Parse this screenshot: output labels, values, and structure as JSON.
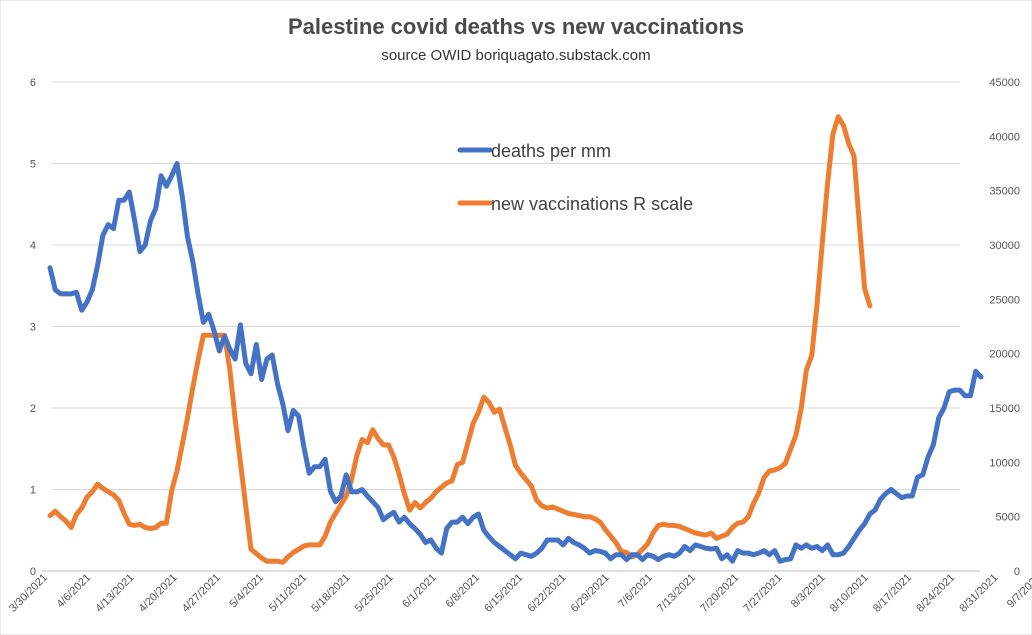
{
  "chart_data": {
    "type": "line",
    "title": "Palestine covid deaths vs new vaccinations",
    "subtitle": "source OWID boriquagato.substack.com",
    "y_left": {
      "min": 0,
      "max": 6,
      "ticks": [
        "0",
        "1",
        "2",
        "3",
        "4",
        "5",
        "6"
      ]
    },
    "y_right": {
      "min": 0,
      "max": 45000,
      "ticks": [
        "0",
        "5000",
        "10000",
        "15000",
        "20000",
        "25000",
        "30000",
        "35000",
        "40000",
        "45000"
      ]
    },
    "x_tick_labels": [
      "3/30/2021",
      "4/6/2021",
      "4/13/2021",
      "4/20/2021",
      "4/27/2021",
      "5/4/2021",
      "5/11/2021",
      "5/18/2021",
      "5/25/2021",
      "6/1/2021",
      "6/8/2021",
      "6/15/2021",
      "6/22/2021",
      "6/29/2021",
      "7/6/2021",
      "7/13/2021",
      "7/20/2021",
      "7/27/2021",
      "8/3/2021",
      "8/10/2021",
      "8/17/2021",
      "8/24/2021",
      "8/31/2021",
      "9/7/2021"
    ],
    "grid": true,
    "legend_position": "top-center",
    "series": [
      {
        "name": "deaths per mm",
        "axis": "left",
        "color": "#4472C4",
        "values": [
          3.72,
          3.45,
          3.4,
          3.4,
          3.4,
          3.42,
          3.2,
          3.3,
          3.45,
          3.75,
          4.12,
          4.25,
          4.2,
          4.55,
          4.55,
          4.65,
          4.3,
          3.92,
          4.0,
          4.3,
          4.45,
          4.85,
          4.72,
          4.85,
          5.0,
          4.6,
          4.1,
          3.8,
          3.4,
          3.05,
          3.15,
          2.95,
          2.7,
          2.88,
          2.72,
          2.6,
          3.02,
          2.55,
          2.42,
          2.78,
          2.35,
          2.6,
          2.65,
          2.3,
          2.05,
          1.72,
          1.97,
          1.9,
          1.52,
          1.2,
          1.28,
          1.28,
          1.37,
          0.98,
          0.85,
          0.92,
          1.18,
          0.97,
          0.97,
          1.0,
          0.92,
          0.85,
          0.78,
          0.63,
          0.68,
          0.72,
          0.6,
          0.66,
          0.58,
          0.52,
          0.45,
          0.35,
          0.38,
          0.28,
          0.22,
          0.52,
          0.6,
          0.6,
          0.66,
          0.58,
          0.66,
          0.7,
          0.5,
          0.42,
          0.35,
          0.3,
          0.25,
          0.2,
          0.15,
          0.22,
          0.2,
          0.18,
          0.22,
          0.28,
          0.38,
          0.38,
          0.38,
          0.32,
          0.4,
          0.35,
          0.32,
          0.28,
          0.22,
          0.25,
          0.24,
          0.22,
          0.15,
          0.2,
          0.2,
          0.14,
          0.2,
          0.2,
          0.14,
          0.2,
          0.18,
          0.14,
          0.18,
          0.2,
          0.18,
          0.22,
          0.3,
          0.25,
          0.32,
          0.3,
          0.28,
          0.27,
          0.28,
          0.15,
          0.2,
          0.12,
          0.25,
          0.22,
          0.22,
          0.2,
          0.22,
          0.25,
          0.2,
          0.25,
          0.12,
          0.14,
          0.15,
          0.32,
          0.28,
          0.32,
          0.28,
          0.3,
          0.25,
          0.32,
          0.2,
          0.2,
          0.22,
          0.3,
          0.4,
          0.5,
          0.58,
          0.7,
          0.75,
          0.88,
          0.95,
          1.0,
          0.95,
          0.9,
          0.92,
          0.92,
          1.15,
          1.18,
          1.4,
          1.55,
          1.88,
          2.0,
          2.2,
          2.22,
          2.22,
          2.15,
          2.15,
          2.45,
          2.38
        ]
      },
      {
        "name": "new vaccinations R scale",
        "axis": "right",
        "color": "#ED7D31",
        "values": [
          5100,
          5500,
          5000,
          4600,
          4000,
          5200,
          5800,
          6800,
          7300,
          8000,
          7600,
          7300,
          7000,
          6500,
          5300,
          4300,
          4200,
          4300,
          4000,
          3900,
          4000,
          4400,
          4400,
          7400,
          9200,
          11600,
          14100,
          16900,
          19400,
          21700,
          21700,
          21700,
          21700,
          21700,
          18500,
          14000,
          10000,
          6000,
          2000,
          1600,
          1200,
          900,
          900,
          900,
          800,
          1300,
          1700,
          2000,
          2300,
          2400,
          2400,
          2400,
          3200,
          4500,
          5300,
          6100,
          6900,
          8400,
          10600,
          12100,
          11800,
          13000,
          12200,
          11600,
          11600,
          10500,
          8900,
          7100,
          5600,
          6300,
          5800,
          6300,
          6700,
          7300,
          7700,
          8100,
          8300,
          9800,
          10000,
          11800,
          13600,
          14600,
          16000,
          15500,
          14600,
          14900,
          13200,
          11600,
          9700,
          9000,
          8400,
          7800,
          6500,
          6000,
          5800,
          5900,
          5700,
          5500,
          5300,
          5200,
          5100,
          5000,
          5000,
          4800,
          4500,
          3800,
          3200,
          2600,
          1800,
          1700,
          1300,
          1500,
          2000,
          2500,
          3500,
          4200,
          4300,
          4200,
          4200,
          4100,
          3900,
          3700,
          3500,
          3400,
          3300,
          3500,
          3000,
          3200,
          3400,
          4000,
          4400,
          4500,
          5000,
          6200,
          7200,
          8600,
          9200,
          9300,
          9500,
          9900,
          11200,
          12500,
          14900,
          18500,
          19800,
          24500,
          30200,
          35700,
          40200,
          41800,
          41000,
          39300,
          38200,
          32000,
          26000,
          24400
        ]
      }
    ]
  }
}
